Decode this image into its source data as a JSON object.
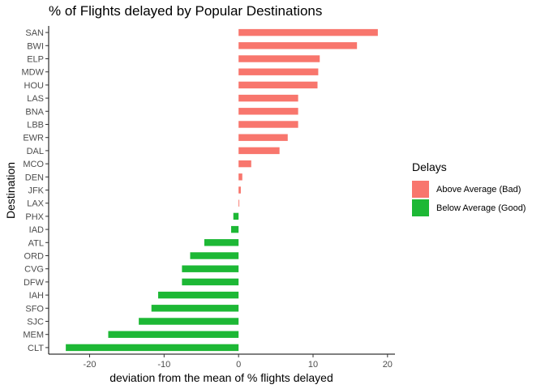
{
  "chart_data": {
    "type": "bar",
    "orientation": "horizontal",
    "title": "% of Flights delayed by Popular Destinations",
    "xlabel": "deviation from the mean of % flights delayed",
    "ylabel": "Destination",
    "xlim": [
      -25.5,
      21
    ],
    "xticks": [
      -20,
      -10,
      0,
      10,
      20
    ],
    "xtick_labels": [
      "-20",
      "-10",
      "0",
      "10",
      "20"
    ],
    "grid": false,
    "legend": {
      "title": "Delays",
      "position": "right",
      "items": [
        {
          "label": "Above Average (Bad)",
          "color": "#F8766D"
        },
        {
          "label": "Below Average (Good)",
          "color": "#1DB835"
        }
      ]
    },
    "categories": [
      "SAN",
      "BWI",
      "ELP",
      "MDW",
      "HOU",
      "LAS",
      "BNA",
      "LBB",
      "EWR",
      "DAL",
      "MCO",
      "DEN",
      "JFK",
      "LAX",
      "PHX",
      "IAD",
      "ATL",
      "ORD",
      "CVG",
      "DFW",
      "IAH",
      "SFO",
      "SJC",
      "MEM",
      "CLT"
    ],
    "values": [
      18.7,
      15.9,
      10.9,
      10.7,
      10.6,
      8.0,
      8.0,
      8.0,
      6.6,
      5.5,
      1.7,
      0.5,
      0.3,
      0.1,
      -0.7,
      -1.0,
      -4.6,
      -6.5,
      -7.6,
      -7.6,
      -10.8,
      -11.7,
      -13.4,
      -17.5,
      -23.2
    ],
    "groups": [
      "Above Average (Bad)",
      "Above Average (Bad)",
      "Above Average (Bad)",
      "Above Average (Bad)",
      "Above Average (Bad)",
      "Above Average (Bad)",
      "Above Average (Bad)",
      "Above Average (Bad)",
      "Above Average (Bad)",
      "Above Average (Bad)",
      "Above Average (Bad)",
      "Above Average (Bad)",
      "Above Average (Bad)",
      "Above Average (Bad)",
      "Below Average (Good)",
      "Below Average (Good)",
      "Below Average (Good)",
      "Below Average (Good)",
      "Below Average (Good)",
      "Below Average (Good)",
      "Below Average (Good)",
      "Below Average (Good)",
      "Below Average (Good)",
      "Below Average (Good)",
      "Below Average (Good)"
    ]
  }
}
